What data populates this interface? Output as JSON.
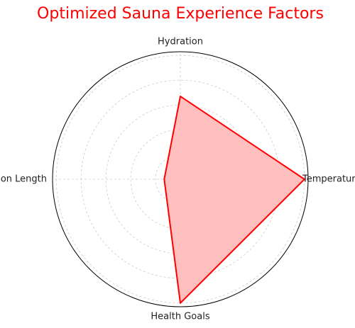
{
  "chart_data": {
    "type": "radar",
    "title": "Optimized Sauna Experience Factors",
    "categories": [
      "Temperature",
      "Hydration",
      "Session Length",
      "Health Goals"
    ],
    "values": [
      10,
      6.7,
      1.3,
      10
    ],
    "color": "red",
    "fill": "#ffbfbf",
    "ylim": [
      0,
      10.3
    ],
    "yticks": [
      2,
      4,
      6,
      8,
      10
    ],
    "grid": true
  }
}
